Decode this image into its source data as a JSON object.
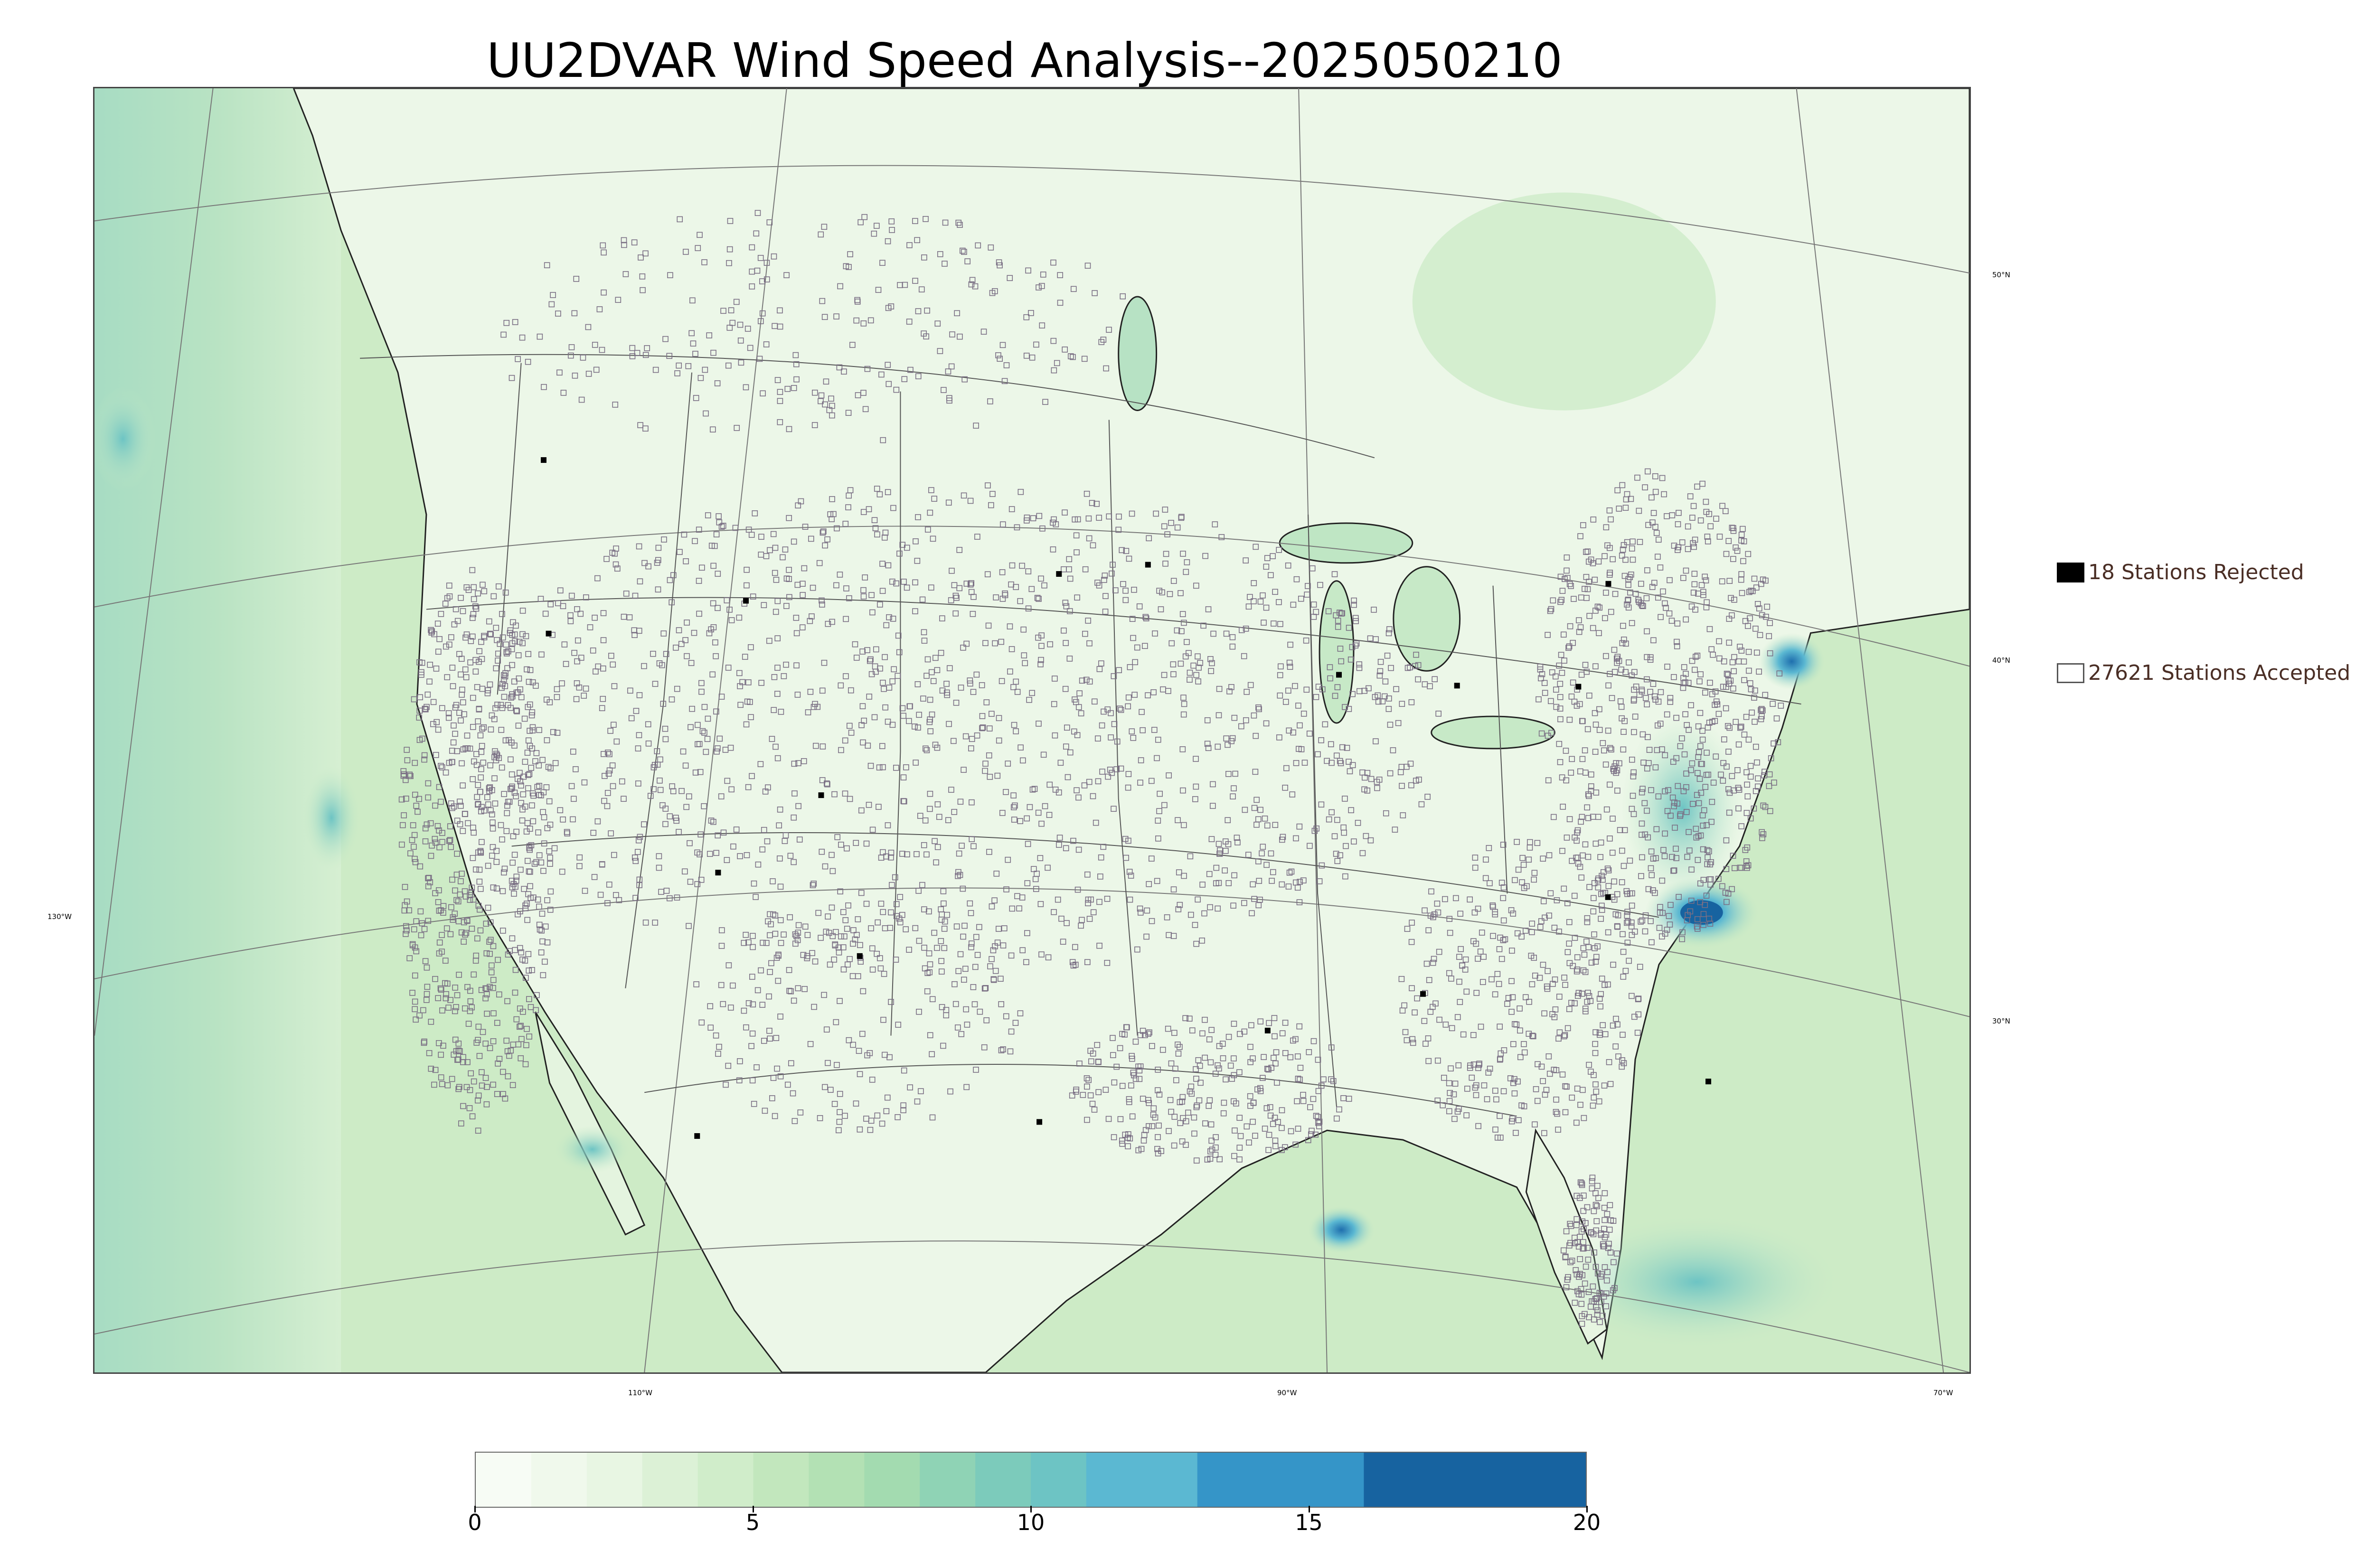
{
  "title": "UU2DVAR Wind Speed Analysis--2025050210",
  "map": {
    "background_color": "#e8f6e3",
    "land_color": "#ecf7e8",
    "ocean_color": "#cdebc6",
    "station_marker_color": "#7a6f84",
    "longitude_labels": [
      "130°W",
      "110°W",
      "90°W",
      "70°W"
    ],
    "latitude_labels": [
      "50°N",
      "40°N",
      "30°N"
    ]
  },
  "legend": {
    "rejected": {
      "label": "18 Stations Rejected",
      "count": 18,
      "swatch_color": "#000000"
    },
    "accepted": {
      "label": "27621 Stations Accepted",
      "count": 27621,
      "swatch_color": "#ffffff"
    }
  },
  "colorbar": {
    "min": 0,
    "max": 20,
    "tick_values": [
      0,
      5,
      10,
      15,
      20
    ],
    "tick_labels": [
      "0",
      "5",
      "10",
      "15",
      "20"
    ],
    "bins": [
      {
        "from": 0,
        "to": 1,
        "color": "#f7fcf5"
      },
      {
        "from": 1,
        "to": 2,
        "color": "#f0f9ec"
      },
      {
        "from": 2,
        "to": 3,
        "color": "#e8f6e3"
      },
      {
        "from": 3,
        "to": 4,
        "color": "#dcf1d6"
      },
      {
        "from": 4,
        "to": 5,
        "color": "#d0edca"
      },
      {
        "from": 5,
        "to": 6,
        "color": "#c2e7bd"
      },
      {
        "from": 6,
        "to": 7,
        "color": "#b3e1b4"
      },
      {
        "from": 7,
        "to": 8,
        "color": "#a3dbb0"
      },
      {
        "from": 8,
        "to": 9,
        "color": "#8fd3b5"
      },
      {
        "from": 9,
        "to": 10,
        "color": "#7ccbbb"
      },
      {
        "from": 10,
        "to": 11,
        "color": "#6dc4c4"
      },
      {
        "from": 11,
        "to": 13,
        "color": "#5bb8d2"
      },
      {
        "from": 13,
        "to": 16,
        "color": "#3595c8"
      },
      {
        "from": 16,
        "to": 20,
        "color": "#1763a0"
      }
    ]
  }
}
